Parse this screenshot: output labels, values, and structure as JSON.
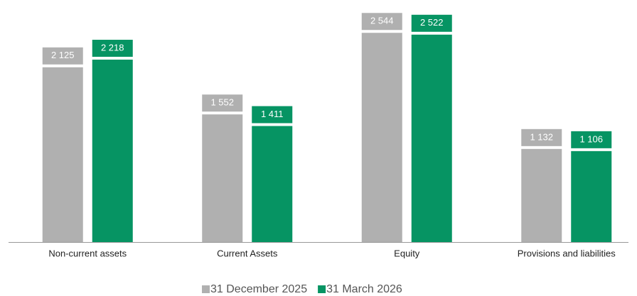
{
  "chart_data": {
    "type": "bar",
    "categories": [
      "Non-current assets",
      "Current Assets",
      "Equity",
      "Provisions and liabilities"
    ],
    "series": [
      {
        "name": "31 December 2025",
        "color": "#b0b0b0",
        "values": [
          2125,
          1552,
          2544,
          1132
        ],
        "value_labels": [
          "2 125",
          "1 552",
          "2 544",
          "1 132"
        ]
      },
      {
        "name": "31 March 2026",
        "color": "#069463",
        "values": [
          2218,
          1411,
          2522,
          1106
        ],
        "value_labels": [
          "2 218",
          "1 411",
          "2 522",
          "1 106"
        ]
      }
    ],
    "ylim": [
      0,
      2900
    ],
    "legend": "bottom"
  }
}
